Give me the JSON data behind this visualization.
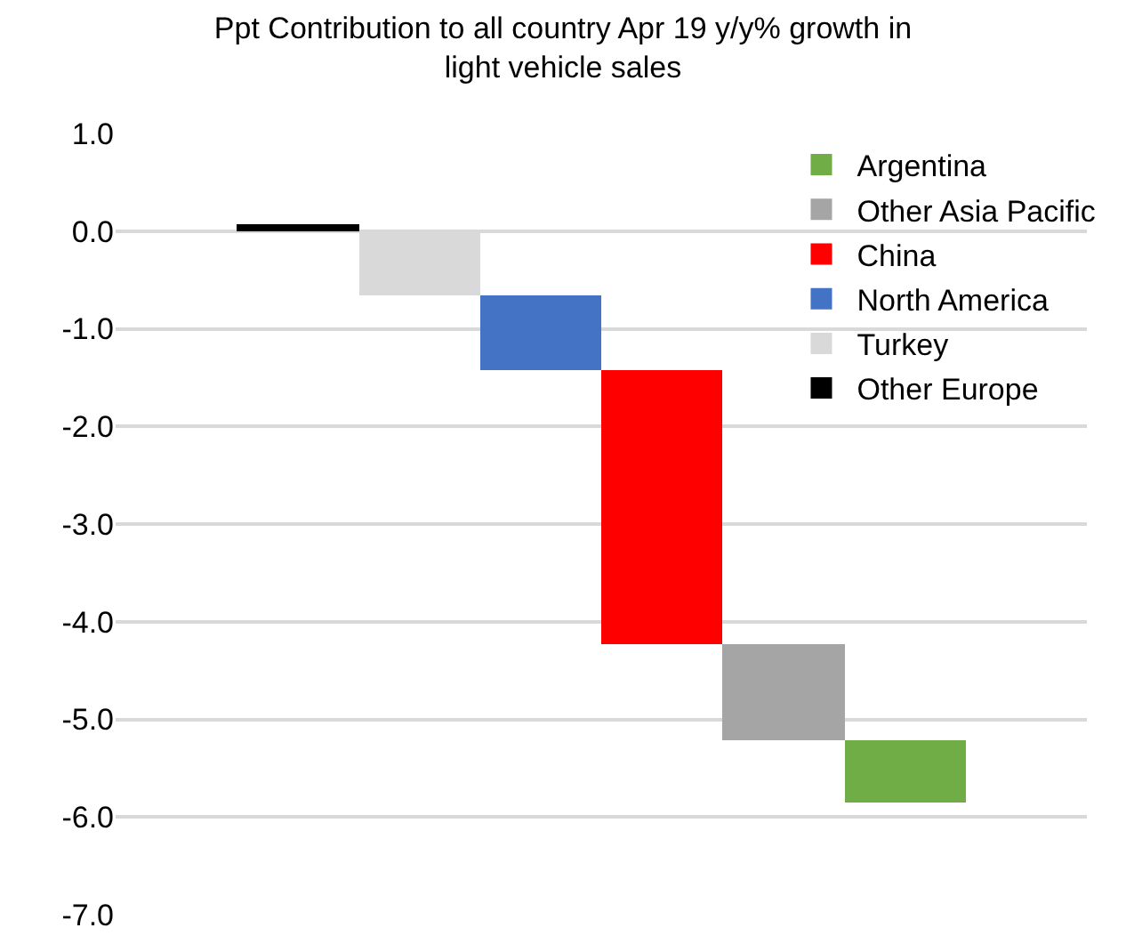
{
  "chart_data": {
    "type": "bar",
    "title": "Ppt Contribution to all country Apr 19 y/y% growth in\nlight vehicle sales",
    "categories": [
      null,
      null,
      null,
      null,
      null,
      null,
      null,
      null
    ],
    "series": [
      {
        "name": "Other Europe",
        "color": "#000000",
        "values": [
          null,
          0.07,
          null,
          null,
          null,
          null,
          null,
          null
        ],
        "base": [
          null,
          0,
          null,
          null,
          null,
          null,
          null,
          null
        ]
      },
      {
        "name": "Turkey",
        "color": "#d9d9d9",
        "values": [
          null,
          null,
          -0.65,
          null,
          null,
          null,
          null,
          null
        ],
        "base": [
          null,
          null,
          0,
          null,
          null,
          null,
          null,
          null
        ]
      },
      {
        "name": "North America",
        "color": "#4472c4",
        "values": [
          null,
          null,
          null,
          -0.78,
          null,
          null,
          null,
          null
        ],
        "base": [
          null,
          null,
          null,
          -0.65,
          null,
          null,
          null,
          null
        ]
      },
      {
        "name": "China",
        "color": "#ff0000",
        "values": [
          null,
          null,
          null,
          null,
          -2.8,
          null,
          null,
          null
        ],
        "base": [
          null,
          null,
          null,
          null,
          -1.43,
          null,
          null,
          null
        ]
      },
      {
        "name": "Other Asia Pacific",
        "color": "#a5a5a5",
        "values": [
          null,
          null,
          null,
          null,
          null,
          -0.99,
          null,
          null
        ],
        "base": [
          null,
          null,
          null,
          null,
          null,
          -4.23,
          null,
          null
        ]
      },
      {
        "name": "Argentina",
        "color": "#70ad47",
        "values": [
          null,
          null,
          null,
          null,
          null,
          null,
          -0.64,
          null
        ],
        "base": [
          null,
          null,
          null,
          null,
          null,
          null,
          -5.22,
          null
        ]
      }
    ],
    "ylim": [
      -7,
      1
    ],
    "yticks": [
      {
        "value": 1,
        "label": "1.0"
      },
      {
        "value": 0,
        "label": "0.0"
      },
      {
        "value": -1,
        "label": "-1.0"
      },
      {
        "value": -2,
        "label": "-2.0"
      },
      {
        "value": -3,
        "label": "-3.0"
      },
      {
        "value": -4,
        "label": "-4.0"
      },
      {
        "value": -5,
        "label": "-5.0"
      },
      {
        "value": -6,
        "label": "-6.0"
      },
      {
        "value": -7,
        "label": "-7.0"
      }
    ],
    "grid": "y",
    "legend": "top right",
    "tick_labels": "y"
  }
}
